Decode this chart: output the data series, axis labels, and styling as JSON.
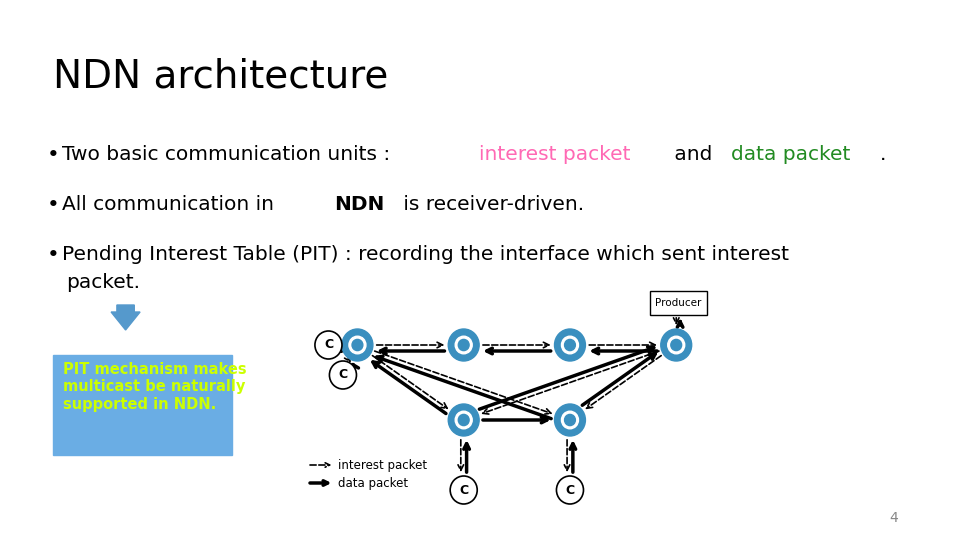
{
  "title": "NDN architecture",
  "title_fontsize": 28,
  "title_color": "#000000",
  "background_color": "#ffffff",
  "bullet1_plain": "Two basic communication units : ",
  "bullet1_interest": "interest packet",
  "bullet1_and": " and ",
  "bullet1_data": "data packet",
  "bullet1_dot": ".",
  "bullet1_interest_color": "#ff69b4",
  "bullet1_data_color": "#228B22",
  "bullet2": "All communication in NDN is receiver-driven.",
  "bullet2_bold": "NDN",
  "bullet3_line1": "Pending Interest Table (PIT) : recording the interface which sent interest",
  "bullet3_line2": "  packet.",
  "pit_box_text": "PIT mechanism makes\nmulticast be naturally\nsupported in NDN.",
  "pit_box_bg": "#6aade4",
  "pit_text_color": "#ccff00",
  "page_number": "4",
  "font_size_bullets": 14,
  "arrow_down_color": "#5599cc"
}
